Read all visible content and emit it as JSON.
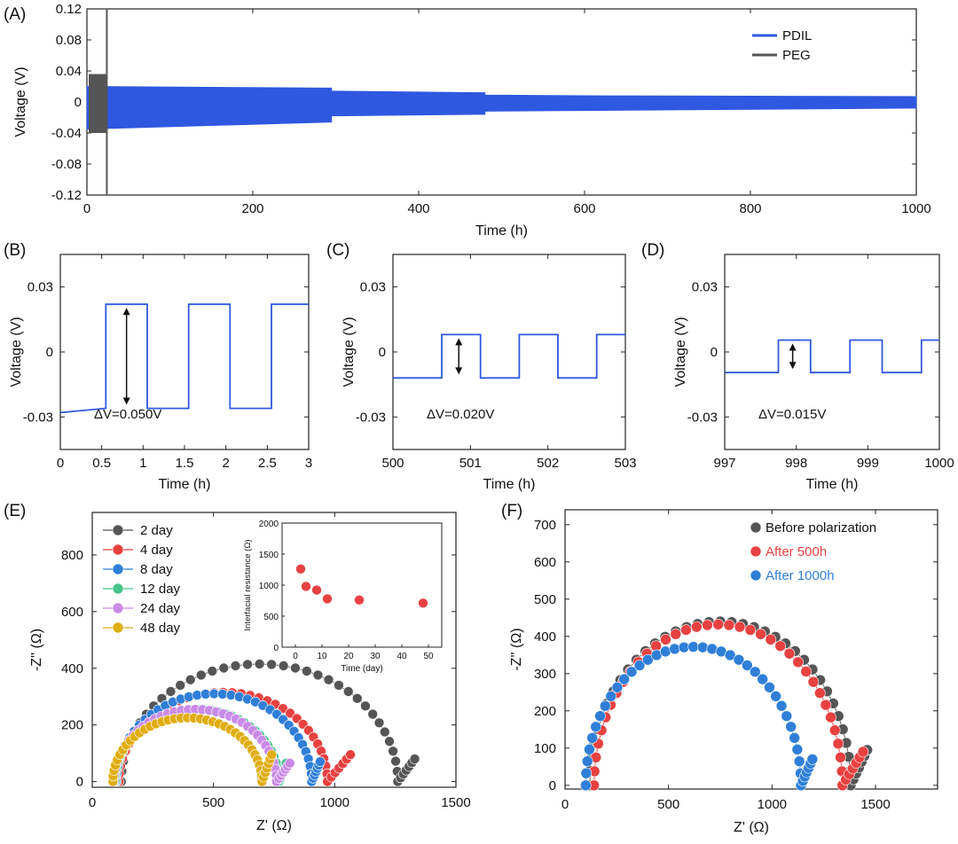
{
  "chart_data": [
    {
      "panel": "(A)",
      "type": "line",
      "title": "",
      "xlabel": "Time (h)",
      "ylabel": "Voltage (V)",
      "xlim": [
        0,
        1000
      ],
      "ylim": [
        -0.12,
        0.12
      ],
      "xticks": [
        "0",
        "200",
        "400",
        "600",
        "800",
        "1000"
      ],
      "yticks": [
        "0.12",
        "0.08",
        "0.04",
        "0",
        "-0.04",
        "-0.08",
        "-0.12"
      ],
      "legend": [
        "PDIL",
        "PEG"
      ],
      "legend_position": "top-right",
      "series": [
        {
          "name": "PDIL",
          "color": "#2f58e0",
          "envelope": [
            {
              "x": 0,
              "upper": 0.02,
              "lower": -0.035
            },
            {
              "x": 295,
              "upper": 0.018,
              "lower": -0.026
            },
            {
              "x": 295,
              "upper": 0.014,
              "lower": -0.018
            },
            {
              "x": 480,
              "upper": 0.012,
              "lower": -0.016
            },
            {
              "x": 480,
              "upper": 0.009,
              "lower": -0.012
            },
            {
              "x": 620,
              "upper": 0.008,
              "lower": -0.011
            },
            {
              "x": 1000,
              "upper": 0.007,
              "lower": -0.008
            }
          ]
        },
        {
          "name": "PEG",
          "color": "#555555",
          "envelope": [
            {
              "x": 0,
              "upper": 0.036,
              "lower": -0.04
            },
            {
              "x": 23,
              "upper": 0.036,
              "lower": -0.04
            }
          ],
          "failure_x": 24
        }
      ]
    },
    {
      "panel": "(B)",
      "type": "line",
      "xlabel": "Time (h)",
      "ylabel": "Voltage (V)",
      "xlim": [
        0,
        3
      ],
      "ylim": [
        -0.045,
        0.045
      ],
      "xticks": [
        "0",
        "0.5",
        "1",
        "1.5",
        "2",
        "2.5",
        "3"
      ],
      "yticks": [
        "0.03",
        "0",
        "-0.03"
      ],
      "steps": {
        "switch_times": [
          0.55,
          1.05,
          1.55,
          2.05,
          2.55
        ],
        "high": 0.022,
        "low": -0.026,
        "start_value": -0.028
      },
      "annotation": "ΔV=0.050V",
      "arrow_x": 0.8
    },
    {
      "panel": "(C)",
      "type": "line",
      "xlabel": "Time (h)",
      "ylabel": "Voltage (V)",
      "xlim": [
        500,
        503
      ],
      "ylim": [
        -0.045,
        0.045
      ],
      "xticks": [
        "500",
        "501",
        "502",
        "503"
      ],
      "yticks": [
        "0.03",
        "0",
        "-0.03"
      ],
      "steps": {
        "switch_times": [
          500.63,
          501.13,
          501.63,
          502.13,
          502.63
        ],
        "high": 0.008,
        "low": -0.012,
        "start_value": -0.012
      },
      "annotation": "ΔV=0.020V",
      "arrow_x": 500.85
    },
    {
      "panel": "(D)",
      "type": "line",
      "xlabel": "Time (h)",
      "ylabel": "Voltage (V)",
      "xlim": [
        997,
        1000
      ],
      "ylim": [
        -0.045,
        0.045
      ],
      "xticks": [
        "997",
        "998",
        "999",
        "1000"
      ],
      "yticks": [
        "0.03",
        "0",
        "-0.03"
      ],
      "steps": {
        "switch_times": [
          997.75,
          998.2,
          998.75,
          999.2,
          999.75
        ],
        "high": 0.0055,
        "low": -0.0095,
        "start_value": -0.0095
      },
      "annotation": "ΔV=0.015V",
      "arrow_x": 997.95
    },
    {
      "panel": "(E)",
      "type": "scatter",
      "xlabel": "Z' (Ω)",
      "ylabel": "-Z'' (Ω)",
      "xlim": [
        0,
        1500
      ],
      "ylim": [
        -20,
        950
      ],
      "xticks": [
        "0",
        "500",
        "1000",
        "1500"
      ],
      "yticks": [
        "0",
        "200",
        "400",
        "600",
        "800"
      ],
      "legend_position": "top-left",
      "series": [
        {
          "name": "2 day",
          "color": "#555555",
          "arc": {
            "r0": 120,
            "r1": 1260,
            "peak": 415
          },
          "tail": {
            "x": 1330,
            "y": 80
          }
        },
        {
          "name": "4 day",
          "color": "#e84141",
          "arc": {
            "r0": 110,
            "r1": 970,
            "peak": 315
          },
          "tail": {
            "x": 1065,
            "y": 95
          }
        },
        {
          "name": "8 day",
          "color": "#2f7fd8",
          "arc": {
            "r0": 100,
            "r1": 905,
            "peak": 310
          },
          "tail": {
            "x": 940,
            "y": 70
          }
        },
        {
          "name": "12 day",
          "color": "#45c48a",
          "arc": {
            "r0": 95,
            "r1": 770,
            "peak": 255
          },
          "tail": {
            "x": 800,
            "y": 65
          }
        },
        {
          "name": "24 day",
          "color": "#c98be8",
          "arc": {
            "r0": 90,
            "r1": 760,
            "peak": 255
          },
          "tail": {
            "x": 815,
            "y": 65
          }
        },
        {
          "name": "48 day",
          "color": "#e0ad12",
          "arc": {
            "r0": 85,
            "r1": 700,
            "peak": 225
          },
          "tail": {
            "x": 740,
            "y": 95
          }
        }
      ],
      "inset": {
        "type": "scatter",
        "xlabel": "Time (day)",
        "ylabel": "Interfacial resistance (Ω)",
        "xlim": [
          -5,
          55
        ],
        "ylim": [
          0,
          2000
        ],
        "xticks": [
          "0",
          "10",
          "20",
          "30",
          "40",
          "50"
        ],
        "yticks": [
          "0",
          "500",
          "1000",
          "1500",
          "2000"
        ],
        "x": [
          2,
          4,
          8,
          12,
          24,
          48
        ],
        "y": [
          1260,
          980,
          920,
          780,
          760,
          710
        ],
        "color": "#e84141"
      }
    },
    {
      "panel": "(F)",
      "type": "scatter",
      "xlabel": "Z' (Ω)",
      "ylabel": "-Z'' (Ω)",
      "xlim": [
        0,
        1800
      ],
      "ylim": [
        -10,
        740
      ],
      "xticks": [
        "0",
        "500",
        "1000",
        "1500"
      ],
      "yticks": [
        "0",
        "100",
        "200",
        "300",
        "400",
        "500",
        "600",
        "700"
      ],
      "legend_position": "top-left",
      "series": [
        {
          "name": "Before polarization",
          "color": "#555555",
          "arc": {
            "r0": 120,
            "r1": 1380,
            "peak": 440
          },
          "tail": {
            "x": 1460,
            "y": 95
          }
        },
        {
          "name": "After 500h",
          "color": "#e84141",
          "arc": {
            "r0": 140,
            "r1": 1340,
            "peak": 432
          },
          "tail": {
            "x": 1440,
            "y": 90
          }
        },
        {
          "name": "After 1000h",
          "color": "#2f7fd8",
          "arc": {
            "r0": 100,
            "r1": 1140,
            "peak": 372
          },
          "tail": {
            "x": 1195,
            "y": 70
          }
        }
      ]
    }
  ]
}
